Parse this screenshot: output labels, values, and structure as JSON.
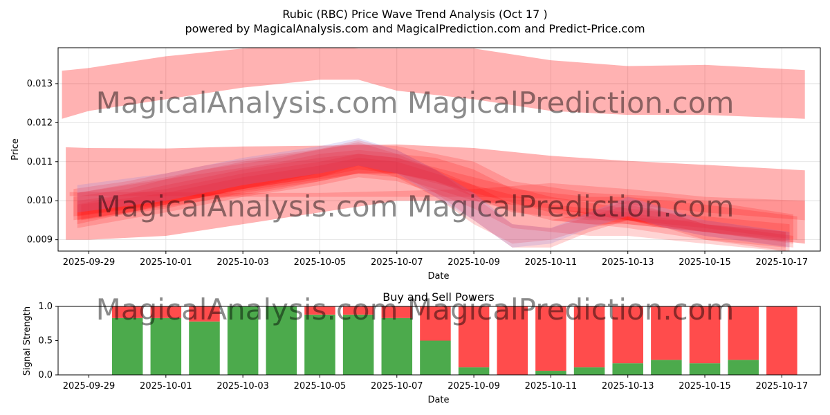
{
  "title_line1": "Rubic (RBC) Price Wave Trend Analysis (Oct 17 )",
  "title_line2": "powered by MagicalAnalysis.com and MagicalPrediction.com and Predict-Price.com",
  "watermark": "MagicalAnalysis.com    MagicalPrediction.com",
  "chart_data": [
    {
      "type": "area",
      "title": "",
      "xlabel": "Date",
      "ylabel": "Price",
      "xlim": [
        -0.8,
        19.0
      ],
      "ylim": [
        0.00871,
        0.01392
      ],
      "yticks": [
        0.009,
        0.01,
        0.011,
        0.012,
        0.013
      ],
      "ytick_labels": [
        "0.009",
        "0.010",
        "0.011",
        "0.012",
        "0.013"
      ],
      "xticks": [
        0,
        2,
        4,
        6,
        8,
        10,
        12,
        14,
        16,
        18
      ],
      "xtick_labels": [
        "2025-09-29",
        "2025-10-01",
        "2025-10-03",
        "2025-10-05",
        "2025-10-07",
        "2025-10-09",
        "2025-10-11",
        "2025-10-13",
        "2025-10-15",
        "2025-10-17"
      ],
      "x_day_offsets": [
        -0.7,
        -0.5,
        1,
        2,
        3,
        4,
        5,
        6,
        7,
        8,
        9,
        10,
        11,
        12,
        13,
        14,
        15,
        16,
        17,
        18,
        18.6,
        18.8
      ],
      "color": "#ff0000",
      "bands": [
        {
          "name": "upper-wave",
          "x": [
            -0.7,
            0,
            2,
            4,
            6,
            7,
            8,
            10,
            12,
            14,
            16,
            18.6
          ],
          "upper": [
            0.01333,
            0.0134,
            0.0137,
            0.0139,
            0.014,
            0.0139,
            0.0139,
            0.0139,
            0.0136,
            0.01345,
            0.01348,
            0.01335
          ],
          "lower": [
            0.0121,
            0.0123,
            0.0126,
            0.0129,
            0.0131,
            0.0131,
            0.01282,
            0.0126,
            0.0123,
            0.0122,
            0.0122,
            0.0121
          ]
        },
        {
          "name": "main-channel",
          "x": [
            -0.6,
            0,
            2,
            4,
            6,
            8,
            10,
            12,
            14,
            16,
            18.6
          ],
          "upper": [
            0.01137,
            0.01135,
            0.01134,
            0.01139,
            0.01141,
            0.01144,
            0.01135,
            0.01115,
            0.01102,
            0.01092,
            0.01078
          ],
          "lower": [
            0.009,
            0.009,
            0.0091,
            0.0094,
            0.0097,
            0.01,
            0.01,
            0.0098,
            0.0095,
            0.0092,
            0.0089
          ]
        },
        {
          "name": "wave-1",
          "x": [
            -0.4,
            1,
            3,
            5,
            7,
            8,
            9,
            10,
            11,
            12,
            13,
            14,
            15,
            16,
            18.3
          ],
          "upper": [
            0.0103,
            0.0105,
            0.0109,
            0.0112,
            0.01145,
            0.0114,
            0.0112,
            0.011,
            0.0105,
            0.01035,
            0.0102,
            0.01015,
            0.0101,
            0.01,
            0.00965
          ],
          "lower": [
            0.0096,
            0.0098,
            0.0101,
            0.0104,
            0.0107,
            0.0107,
            0.0105,
            0.0102,
            0.0096,
            0.0095,
            0.0094,
            0.0094,
            0.0093,
            0.0092,
            0.0089
          ]
        },
        {
          "name": "wave-2",
          "x": [
            -0.3,
            1,
            3,
            5,
            6,
            7,
            8,
            9,
            10,
            11,
            12,
            13,
            14,
            15,
            16,
            18.4
          ],
          "upper": [
            0.0102,
            0.0104,
            0.0107,
            0.011,
            0.0112,
            0.0113,
            0.0112,
            0.0111,
            0.0108,
            0.0103,
            0.0102,
            0.0101,
            0.0101,
            0.01,
            0.0099,
            0.0096
          ],
          "lower": [
            0.0095,
            0.0097,
            0.01,
            0.0103,
            0.0105,
            0.0107,
            0.0107,
            0.0105,
            0.0101,
            0.0097,
            0.0096,
            0.0095,
            0.0095,
            0.0094,
            0.0093,
            0.009
          ]
        },
        {
          "name": "wave-3",
          "x": [
            -0.3,
            2,
            4,
            6,
            7,
            8,
            9,
            10,
            11,
            12,
            13,
            14,
            15,
            16,
            18.2
          ],
          "upper": [
            0.0102,
            0.0106,
            0.011,
            0.0113,
            0.0115,
            0.0112,
            0.0108,
            0.0102,
            0.0096,
            0.0095,
            0.0097,
            0.01,
            0.0097,
            0.0094,
            0.0092
          ],
          "lower": [
            0.0094,
            0.0099,
            0.0103,
            0.0106,
            0.0109,
            0.0106,
            0.0101,
            0.0094,
            0.0089,
            0.009,
            0.0093,
            0.0095,
            0.0093,
            0.009,
            0.0087
          ]
        },
        {
          "name": "wave-4",
          "x": [
            -0.4,
            1,
            3,
            5,
            7,
            8,
            9,
            10,
            11,
            12,
            13,
            14,
            15,
            16,
            18.3
          ],
          "upper": [
            0.0101,
            0.0103,
            0.0108,
            0.0111,
            0.01155,
            0.0113,
            0.0108,
            0.0101,
            0.0094,
            0.0093,
            0.0096,
            0.0099,
            0.0097,
            0.0094,
            0.0091
          ],
          "lower": [
            0.0095,
            0.0097,
            0.0101,
            0.0105,
            0.0109,
            0.0107,
            0.0102,
            0.0095,
            0.0088,
            0.0088,
            0.0092,
            0.0095,
            0.0093,
            0.0091,
            0.0088
          ]
        },
        {
          "name": "wave-5",
          "x": [
            -0.3,
            2,
            4,
            6,
            7,
            8,
            10,
            12,
            14,
            16,
            18.2
          ],
          "upper": [
            0.01,
            0.0103,
            0.0107,
            0.011,
            0.0112,
            0.0111,
            0.0106,
            0.0101,
            0.0098,
            0.0096,
            0.0094
          ],
          "lower": [
            0.0096,
            0.0099,
            0.0103,
            0.0106,
            0.0108,
            0.0107,
            0.0102,
            0.0097,
            0.0094,
            0.0092,
            0.009
          ]
        },
        {
          "name": "wave-6",
          "x": [
            -0.2,
            2,
            4,
            6,
            7,
            8,
            10,
            12,
            14,
            16,
            18.1
          ],
          "upper": [
            0.0099,
            0.0102,
            0.0106,
            0.0109,
            0.0111,
            0.011,
            0.0104,
            0.0099,
            0.0097,
            0.0094,
            0.0092
          ],
          "lower": [
            0.0095,
            0.0098,
            0.0102,
            0.0105,
            0.0107,
            0.0106,
            0.01,
            0.0095,
            0.0093,
            0.009,
            0.0088
          ]
        },
        {
          "name": "wave-7",
          "x": [
            -0.5,
            0,
            2,
            4,
            6,
            8,
            10,
            12,
            14,
            16,
            18.6
          ],
          "upper": [
            0.01022,
            0.01022,
            0.01022,
            0.0102,
            0.0102,
            0.01025,
            0.0103,
            0.01045,
            0.0103,
            0.0101,
            0.01
          ],
          "lower": [
            0.01012,
            0.01012,
            0.01012,
            0.0101,
            0.0101,
            0.0101,
            0.0101,
            0.01005,
            0.0099,
            0.0097,
            0.0095
          ]
        },
        {
          "name": "wave-8",
          "x": [
            -0.3,
            2,
            4,
            6,
            7,
            8,
            9,
            10,
            11,
            12,
            13,
            14,
            15,
            16,
            18.1
          ],
          "upper": [
            0.0099,
            0.0104,
            0.0108,
            0.0111,
            0.0112,
            0.0111,
            0.0108,
            0.0104,
            0.0099,
            0.0098,
            0.0097,
            0.0096,
            0.0095,
            0.0095,
            0.0092
          ],
          "lower": [
            0.0093,
            0.0097,
            0.0101,
            0.0104,
            0.0106,
            0.0105,
            0.0102,
            0.0098,
            0.0093,
            0.0092,
            0.0091,
            0.0091,
            0.009,
            0.0089,
            0.0087
          ]
        }
      ],
      "lavender_bands": [
        {
          "name": "purple-wave-1",
          "x": [
            -0.3,
            2,
            4,
            6,
            7,
            8,
            9,
            10,
            11,
            12,
            13,
            14,
            15,
            16,
            18.2
          ],
          "upper": [
            0.0104,
            0.0107,
            0.0111,
            0.0114,
            0.0116,
            0.0113,
            0.0108,
            0.0102,
            0.0094,
            0.0093,
            0.0097,
            0.0101,
            0.0098,
            0.0095,
            0.0092
          ],
          "lower": [
            0.0097,
            0.01,
            0.0104,
            0.0107,
            0.0109,
            0.0107,
            0.0101,
            0.0095,
            0.0088,
            0.0089,
            0.0093,
            0.0096,
            0.0093,
            0.0091,
            0.0088
          ]
        }
      ]
    },
    {
      "type": "bar",
      "title": "Buy and Sell Powers",
      "xlabel": "Date",
      "ylabel": "Signal Strength",
      "xlim": [
        -0.8,
        19.0
      ],
      "ylim": [
        0,
        1.0
      ],
      "yticks": [
        0.0,
        0.5,
        1.0
      ],
      "ytick_labels": [
        "0.0",
        "0.5",
        "1.0"
      ],
      "xticks": [
        0,
        2,
        4,
        6,
        8,
        10,
        12,
        14,
        16,
        18
      ],
      "xtick_labels": [
        "2025-09-29",
        "2025-10-01",
        "2025-10-03",
        "2025-10-05",
        "2025-10-07",
        "2025-10-09",
        "2025-10-11",
        "2025-10-13",
        "2025-10-15",
        "2025-10-17"
      ],
      "x": [
        1,
        2,
        3,
        4,
        5,
        6,
        7,
        8,
        9,
        10,
        11,
        12,
        13,
        14,
        15,
        16,
        17,
        18
      ],
      "series": [
        {
          "name": "Buy",
          "color": "#4caa4c",
          "values": [
            0.83,
            0.83,
            0.78,
            1.0,
            1.0,
            0.88,
            0.88,
            0.83,
            0.5,
            0.11,
            0.0,
            0.06,
            0.11,
            0.17,
            0.22,
            0.17,
            0.22,
            0.0
          ]
        },
        {
          "name": "Sell",
          "color": "#ff4c4c",
          "values": [
            0.17,
            0.17,
            0.22,
            0.0,
            0.0,
            0.12,
            0.12,
            0.17,
            0.5,
            0.89,
            1.0,
            0.94,
            0.89,
            0.83,
            0.78,
            0.83,
            0.78,
            1.0
          ]
        }
      ]
    }
  ]
}
